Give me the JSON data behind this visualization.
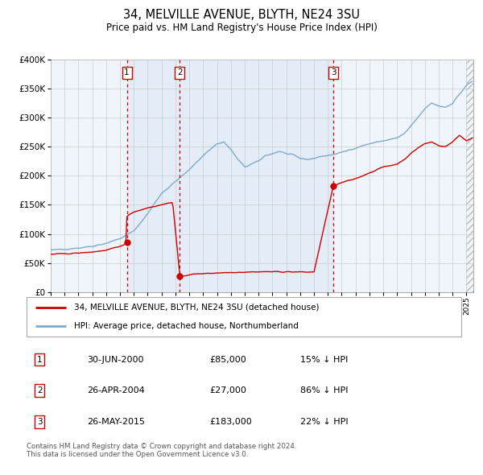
{
  "title": "34, MELVILLE AVENUE, BLYTH, NE24 3SU",
  "subtitle": "Price paid vs. HM Land Registry's House Price Index (HPI)",
  "legend_line1": "34, MELVILLE AVENUE, BLYTH, NE24 3SU (detached house)",
  "legend_line2": "HPI: Average price, detached house, Northumberland",
  "table_rows": [
    {
      "num": "1",
      "date": "30-JUN-2000",
      "price": "£85,000",
      "pct": "15% ↓ HPI"
    },
    {
      "num": "2",
      "date": "26-APR-2004",
      "price": "£27,000",
      "pct": "86% ↓ HPI"
    },
    {
      "num": "3",
      "date": "26-MAY-2015",
      "price": "£183,000",
      "pct": "22% ↓ HPI"
    }
  ],
  "footnote": "Contains HM Land Registry data © Crown copyright and database right 2024.\nThis data is licensed under the Open Government Licence v3.0.",
  "hpi_color": "#7eaacc",
  "price_color": "#cc0000",
  "bg_shaded": "#dce9f5",
  "bg_shaded_alpha": 0.6,
  "grid_color": "#cccccc",
  "sale1_date": 2000.496,
  "sale1_price": 85000,
  "sale2_date": 2004.319,
  "sale2_price": 27000,
  "sale3_date": 2015.399,
  "sale3_price": 183000,
  "xmin": 1995.0,
  "xmax": 2025.5,
  "ymin": 0,
  "ymax": 400000,
  "hpi_anchor_points": [
    [
      1995.0,
      72000
    ],
    [
      1996.0,
      74000
    ],
    [
      1997.0,
      76000
    ],
    [
      1998.0,
      79000
    ],
    [
      1999.0,
      84000
    ],
    [
      2000.0,
      92000
    ],
    [
      2001.0,
      105000
    ],
    [
      2002.0,
      135000
    ],
    [
      2003.0,
      170000
    ],
    [
      2004.0,
      190000
    ],
    [
      2005.0,
      210000
    ],
    [
      2006.0,
      235000
    ],
    [
      2007.0,
      255000
    ],
    [
      2007.5,
      258000
    ],
    [
      2008.0,
      245000
    ],
    [
      2008.5,
      228000
    ],
    [
      2009.0,
      215000
    ],
    [
      2009.5,
      220000
    ],
    [
      2010.0,
      225000
    ],
    [
      2010.5,
      235000
    ],
    [
      2011.0,
      238000
    ],
    [
      2011.5,
      242000
    ],
    [
      2012.0,
      238000
    ],
    [
      2012.5,
      235000
    ],
    [
      2013.0,
      230000
    ],
    [
      2013.5,
      228000
    ],
    [
      2014.0,
      230000
    ],
    [
      2014.5,
      233000
    ],
    [
      2015.0,
      235000
    ],
    [
      2015.5,
      237000
    ],
    [
      2016.0,
      240000
    ],
    [
      2017.0,
      248000
    ],
    [
      2018.0,
      255000
    ],
    [
      2019.0,
      260000
    ],
    [
      2020.0,
      265000
    ],
    [
      2020.5,
      272000
    ],
    [
      2021.0,
      285000
    ],
    [
      2021.5,
      300000
    ],
    [
      2022.0,
      315000
    ],
    [
      2022.5,
      325000
    ],
    [
      2023.0,
      320000
    ],
    [
      2023.5,
      318000
    ],
    [
      2024.0,
      325000
    ],
    [
      2024.5,
      340000
    ],
    [
      2025.0,
      355000
    ],
    [
      2025.4,
      362000
    ]
  ],
  "price_anchor_points": [
    [
      1995.0,
      65000
    ],
    [
      1996.0,
      66000
    ],
    [
      1997.0,
      67000
    ],
    [
      1998.0,
      69000
    ],
    [
      1999.0,
      72000
    ],
    [
      2000.0,
      78000
    ],
    [
      2000.496,
      85000
    ],
    [
      2000.5,
      130000
    ],
    [
      2001.0,
      138000
    ],
    [
      2002.0,
      145000
    ],
    [
      2003.0,
      150000
    ],
    [
      2003.8,
      155000
    ],
    [
      2004.319,
      27000
    ],
    [
      2004.4,
      27000
    ],
    [
      2005.0,
      30000
    ],
    [
      2006.0,
      32000
    ],
    [
      2007.0,
      33000
    ],
    [
      2008.0,
      34000
    ],
    [
      2009.0,
      34500
    ],
    [
      2010.0,
      35000
    ],
    [
      2011.0,
      35000
    ],
    [
      2012.0,
      35000
    ],
    [
      2013.0,
      34500
    ],
    [
      2014.0,
      34500
    ],
    [
      2015.399,
      183000
    ],
    [
      2015.5,
      183000
    ],
    [
      2016.0,
      188000
    ],
    [
      2017.0,
      195000
    ],
    [
      2018.0,
      205000
    ],
    [
      2019.0,
      215000
    ],
    [
      2020.0,
      220000
    ],
    [
      2020.5,
      228000
    ],
    [
      2021.0,
      238000
    ],
    [
      2021.5,
      248000
    ],
    [
      2022.0,
      255000
    ],
    [
      2022.5,
      258000
    ],
    [
      2023.0,
      252000
    ],
    [
      2023.5,
      250000
    ],
    [
      2024.0,
      258000
    ],
    [
      2024.5,
      270000
    ],
    [
      2025.0,
      260000
    ],
    [
      2025.4,
      265000
    ]
  ]
}
